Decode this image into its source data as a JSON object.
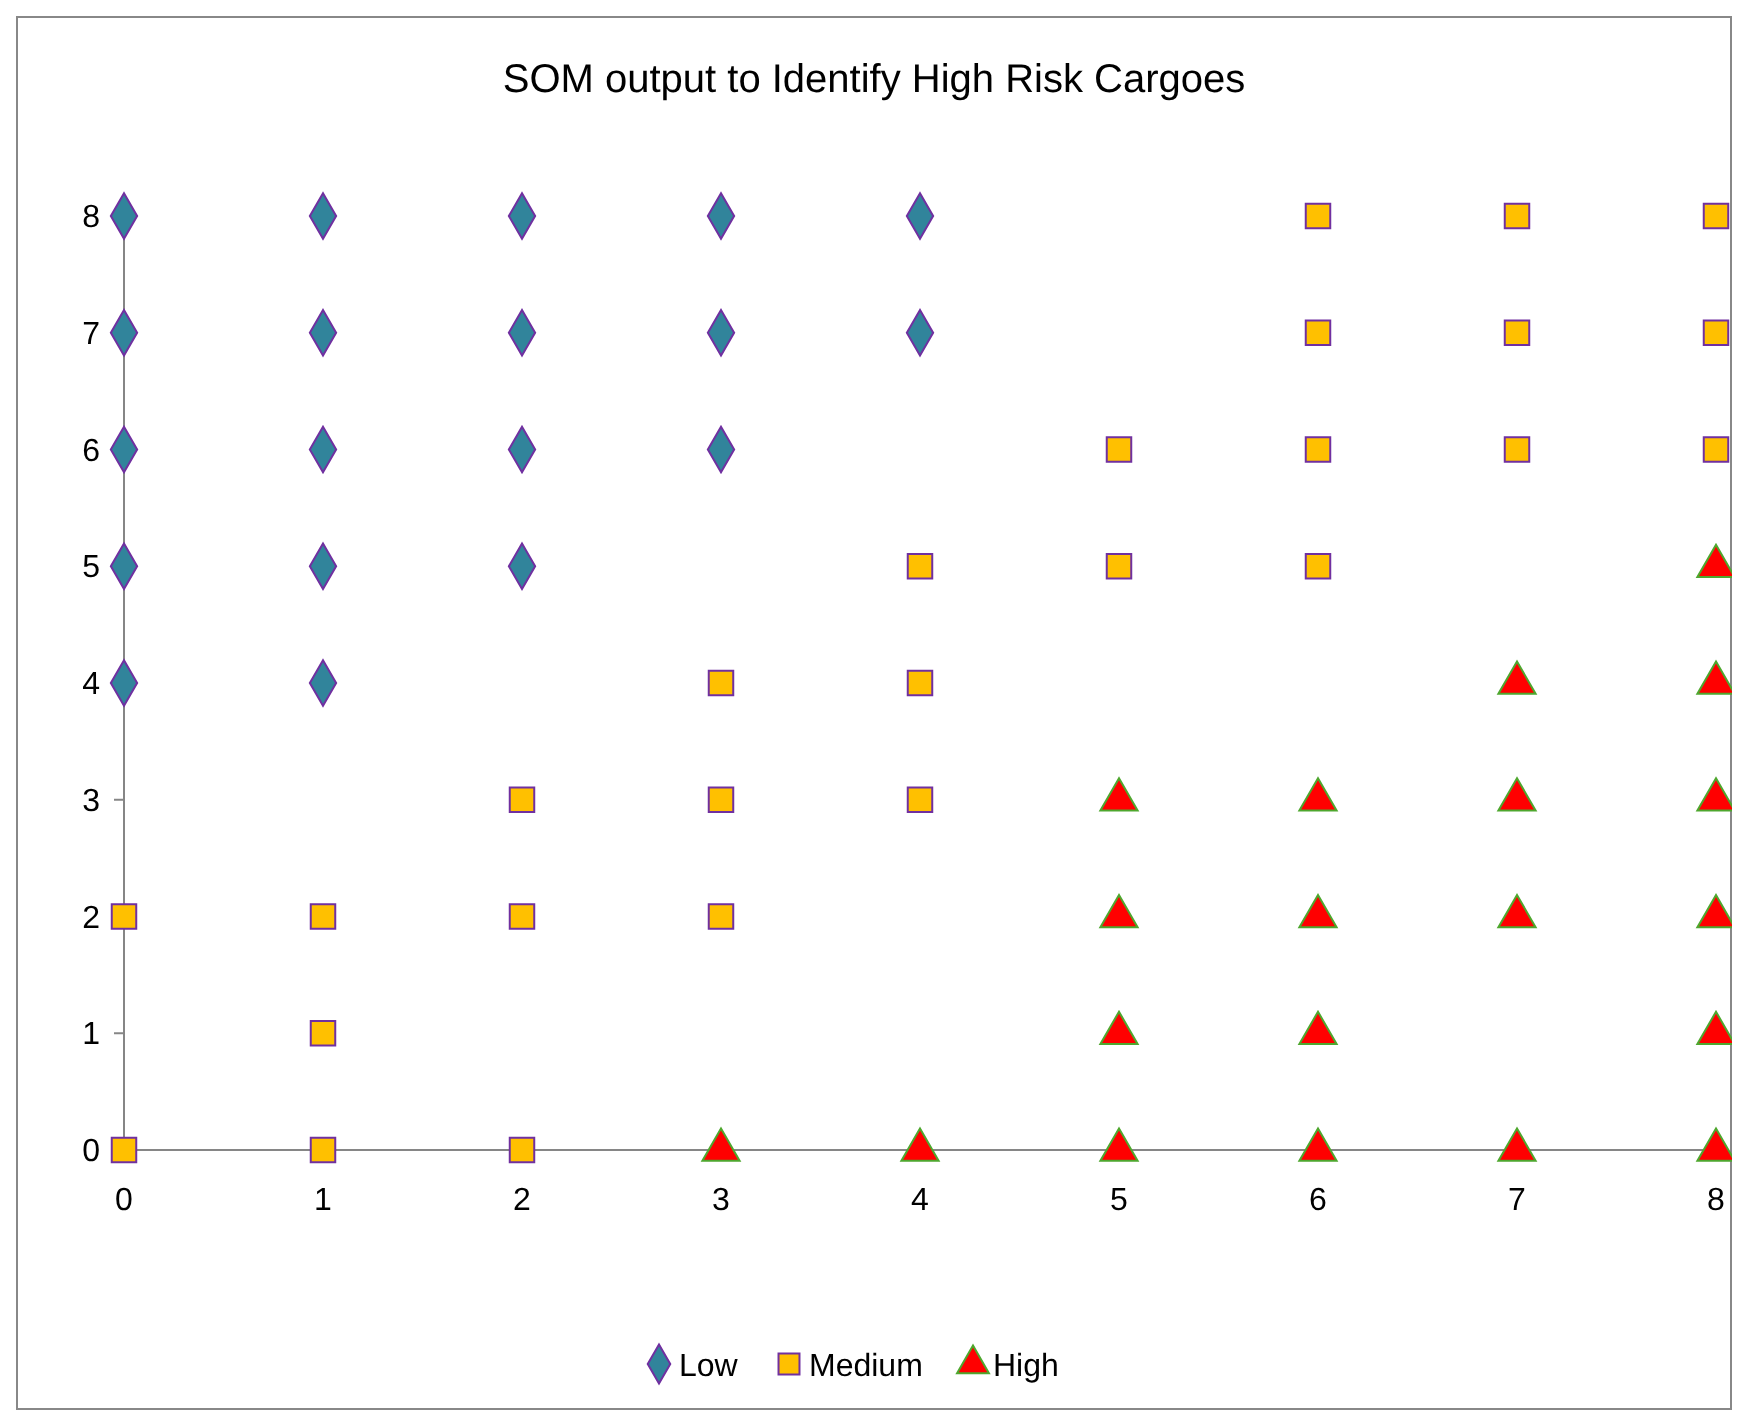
{
  "chart_data": {
    "type": "scatter",
    "title": "SOM output to Identify High Risk Cargoes",
    "xlim": [
      0,
      8
    ],
    "ylim": [
      0,
      8
    ],
    "xticks": [
      0,
      1,
      2,
      3,
      4,
      5,
      6,
      7,
      8
    ],
    "yticks": [
      0,
      1,
      2,
      3,
      4,
      5,
      6,
      7,
      8
    ],
    "grid": false,
    "legend": "bottom",
    "series": [
      {
        "name": "Low",
        "color": "#31849b",
        "marker": "diamond",
        "x": [
          0,
          0,
          0,
          0,
          0,
          1,
          1,
          1,
          1,
          1,
          2,
          2,
          2,
          2,
          3,
          3,
          3,
          4,
          4
        ],
        "values": [
          4,
          5,
          6,
          7,
          8,
          4,
          5,
          6,
          7,
          8,
          5,
          6,
          7,
          8,
          6,
          7,
          8,
          7,
          8
        ]
      },
      {
        "name": "Medium",
        "color": "#ffc000",
        "marker": "square",
        "x": [
          0,
          0,
          1,
          1,
          1,
          2,
          2,
          2,
          3,
          3,
          3,
          4,
          4,
          4,
          5,
          5,
          6,
          6,
          6,
          6,
          7,
          7,
          7,
          8,
          8,
          8
        ],
        "values": [
          0,
          2,
          0,
          1,
          2,
          0,
          2,
          3,
          2,
          3,
          4,
          3,
          4,
          5,
          5,
          6,
          5,
          6,
          7,
          8,
          6,
          7,
          8,
          6,
          7,
          8
        ]
      },
      {
        "name": "High",
        "color": "#ff0000",
        "marker": "triangle",
        "x": [
          3,
          4,
          5,
          5,
          5,
          5,
          6,
          6,
          6,
          6,
          7,
          7,
          7,
          7,
          8,
          8,
          8,
          8,
          8,
          8
        ],
        "values": [
          0,
          0,
          0,
          1,
          2,
          3,
          0,
          1,
          2,
          3,
          0,
          2,
          3,
          4,
          0,
          1,
          2,
          3,
          4,
          5
        ]
      }
    ]
  }
}
